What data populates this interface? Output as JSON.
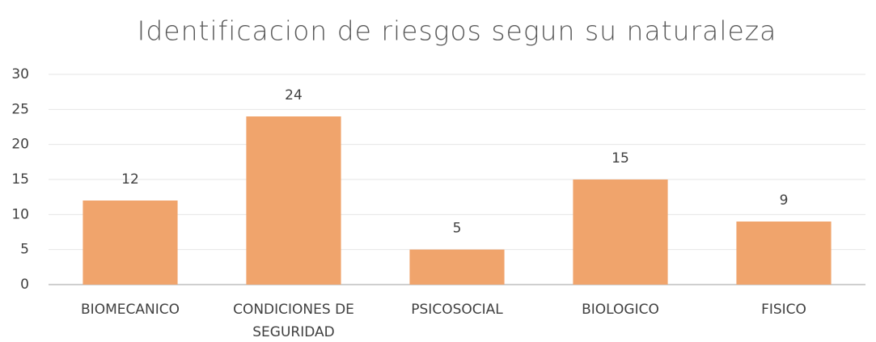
{
  "chart_data": {
    "type": "bar",
    "title": "Identificacion de riesgos segun su naturaleza",
    "categories": [
      "BIOMECANICO",
      "CONDICIONES DE SEGURIDAD",
      "PSICOSOCIAL",
      "BIOLOGICO",
      "FISICO"
    ],
    "values": [
      12,
      24,
      5,
      15,
      9
    ],
    "color": "#f0a46c",
    "ylim": [
      0,
      30
    ],
    "yticks": [
      0,
      5,
      10,
      15,
      20,
      25,
      30
    ],
    "grid": true
  }
}
